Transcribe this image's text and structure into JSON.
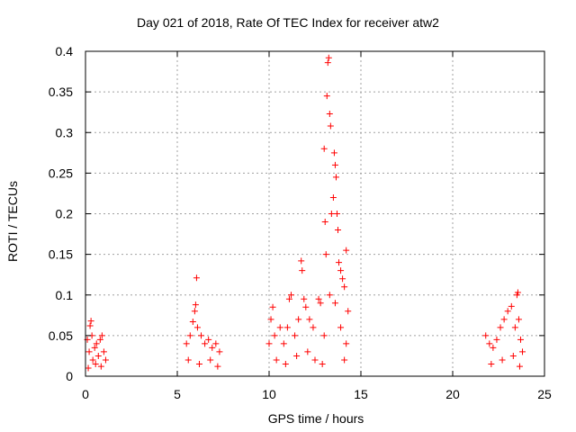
{
  "chart_data": {
    "type": "scatter",
    "title": "Day 021 of 2018, Rate Of TEC Index for receiver atw2",
    "xlabel": "GPS time / hours",
    "ylabel": "ROTI / TECUs",
    "xlim": [
      0,
      25
    ],
    "ylim": [
      0,
      0.4
    ],
    "xticks": [
      0,
      5,
      10,
      15,
      20,
      25
    ],
    "yticks": [
      0,
      0.05,
      0.1,
      0.15,
      0.2,
      0.25,
      0.3,
      0.35,
      0.4
    ],
    "xtick_labels": [
      "0",
      "5",
      "10",
      "15",
      "20",
      "25"
    ],
    "ytick_labels": [
      "0",
      "0.05",
      "0.1",
      "0.15",
      "0.2",
      "0.25",
      "0.3",
      "0.35",
      "0.4"
    ],
    "grid": true,
    "marker": "+",
    "color": "#ff0000",
    "series": [
      {
        "points": [
          [
            0.1,
            0.045
          ],
          [
            0.2,
            0.03
          ],
          [
            0.25,
            0.062
          ],
          [
            0.3,
            0.068
          ],
          [
            0.35,
            0.05
          ],
          [
            0.4,
            0.02
          ],
          [
            0.5,
            0.035
          ],
          [
            0.6,
            0.04
          ],
          [
            0.7,
            0.025
          ],
          [
            0.8,
            0.045
          ],
          [
            0.9,
            0.05
          ],
          [
            1.0,
            0.03
          ],
          [
            1.1,
            0.02
          ],
          [
            0.15,
            0.01
          ],
          [
            0.55,
            0.015
          ],
          [
            0.85,
            0.012
          ],
          [
            5.5,
            0.04
          ],
          [
            5.7,
            0.05
          ],
          [
            5.85,
            0.067
          ],
          [
            5.95,
            0.08
          ],
          [
            6.0,
            0.088
          ],
          [
            6.05,
            0.121
          ],
          [
            6.1,
            0.06
          ],
          [
            6.3,
            0.05
          ],
          [
            6.5,
            0.04
          ],
          [
            6.7,
            0.045
          ],
          [
            6.9,
            0.035
          ],
          [
            7.1,
            0.04
          ],
          [
            7.3,
            0.03
          ],
          [
            5.6,
            0.02
          ],
          [
            6.2,
            0.015
          ],
          [
            6.8,
            0.02
          ],
          [
            7.2,
            0.012
          ],
          [
            10.0,
            0.04
          ],
          [
            10.1,
            0.07
          ],
          [
            10.2,
            0.085
          ],
          [
            10.3,
            0.05
          ],
          [
            10.6,
            0.06
          ],
          [
            10.8,
            0.04
          ],
          [
            11.0,
            0.06
          ],
          [
            11.1,
            0.095
          ],
          [
            11.2,
            0.1
          ],
          [
            11.4,
            0.05
          ],
          [
            11.6,
            0.07
          ],
          [
            11.75,
            0.142
          ],
          [
            11.8,
            0.13
          ],
          [
            11.9,
            0.095
          ],
          [
            12.0,
            0.085
          ],
          [
            12.2,
            0.07
          ],
          [
            12.4,
            0.06
          ],
          [
            12.7,
            0.095
          ],
          [
            12.8,
            0.09
          ],
          [
            13.0,
            0.28
          ],
          [
            13.05,
            0.19
          ],
          [
            13.1,
            0.15
          ],
          [
            13.15,
            0.345
          ],
          [
            13.2,
            0.386
          ],
          [
            13.25,
            0.392
          ],
          [
            13.3,
            0.323
          ],
          [
            13.35,
            0.308
          ],
          [
            13.4,
            0.2
          ],
          [
            13.5,
            0.22
          ],
          [
            13.55,
            0.275
          ],
          [
            13.6,
            0.26
          ],
          [
            13.65,
            0.245
          ],
          [
            13.7,
            0.2
          ],
          [
            13.75,
            0.18
          ],
          [
            13.8,
            0.14
          ],
          [
            13.9,
            0.13
          ],
          [
            14.0,
            0.12
          ],
          [
            14.1,
            0.11
          ],
          [
            14.2,
            0.155
          ],
          [
            14.3,
            0.08
          ],
          [
            12.1,
            0.03
          ],
          [
            12.5,
            0.02
          ],
          [
            13.0,
            0.05
          ],
          [
            13.3,
            0.1
          ],
          [
            13.6,
            0.09
          ],
          [
            13.9,
            0.06
          ],
          [
            14.2,
            0.04
          ],
          [
            10.4,
            0.02
          ],
          [
            10.9,
            0.015
          ],
          [
            11.5,
            0.025
          ],
          [
            12.9,
            0.015
          ],
          [
            14.1,
            0.02
          ],
          [
            21.8,
            0.05
          ],
          [
            22.0,
            0.04
          ],
          [
            22.2,
            0.035
          ],
          [
            22.4,
            0.045
          ],
          [
            22.6,
            0.06
          ],
          [
            22.8,
            0.07
          ],
          [
            23.0,
            0.08
          ],
          [
            23.2,
            0.086
          ],
          [
            23.4,
            0.06
          ],
          [
            23.5,
            0.1
          ],
          [
            23.55,
            0.103
          ],
          [
            23.6,
            0.07
          ],
          [
            23.7,
            0.045
          ],
          [
            23.8,
            0.03
          ],
          [
            22.1,
            0.015
          ],
          [
            22.7,
            0.02
          ],
          [
            23.3,
            0.025
          ],
          [
            23.65,
            0.012
          ]
        ]
      }
    ]
  }
}
